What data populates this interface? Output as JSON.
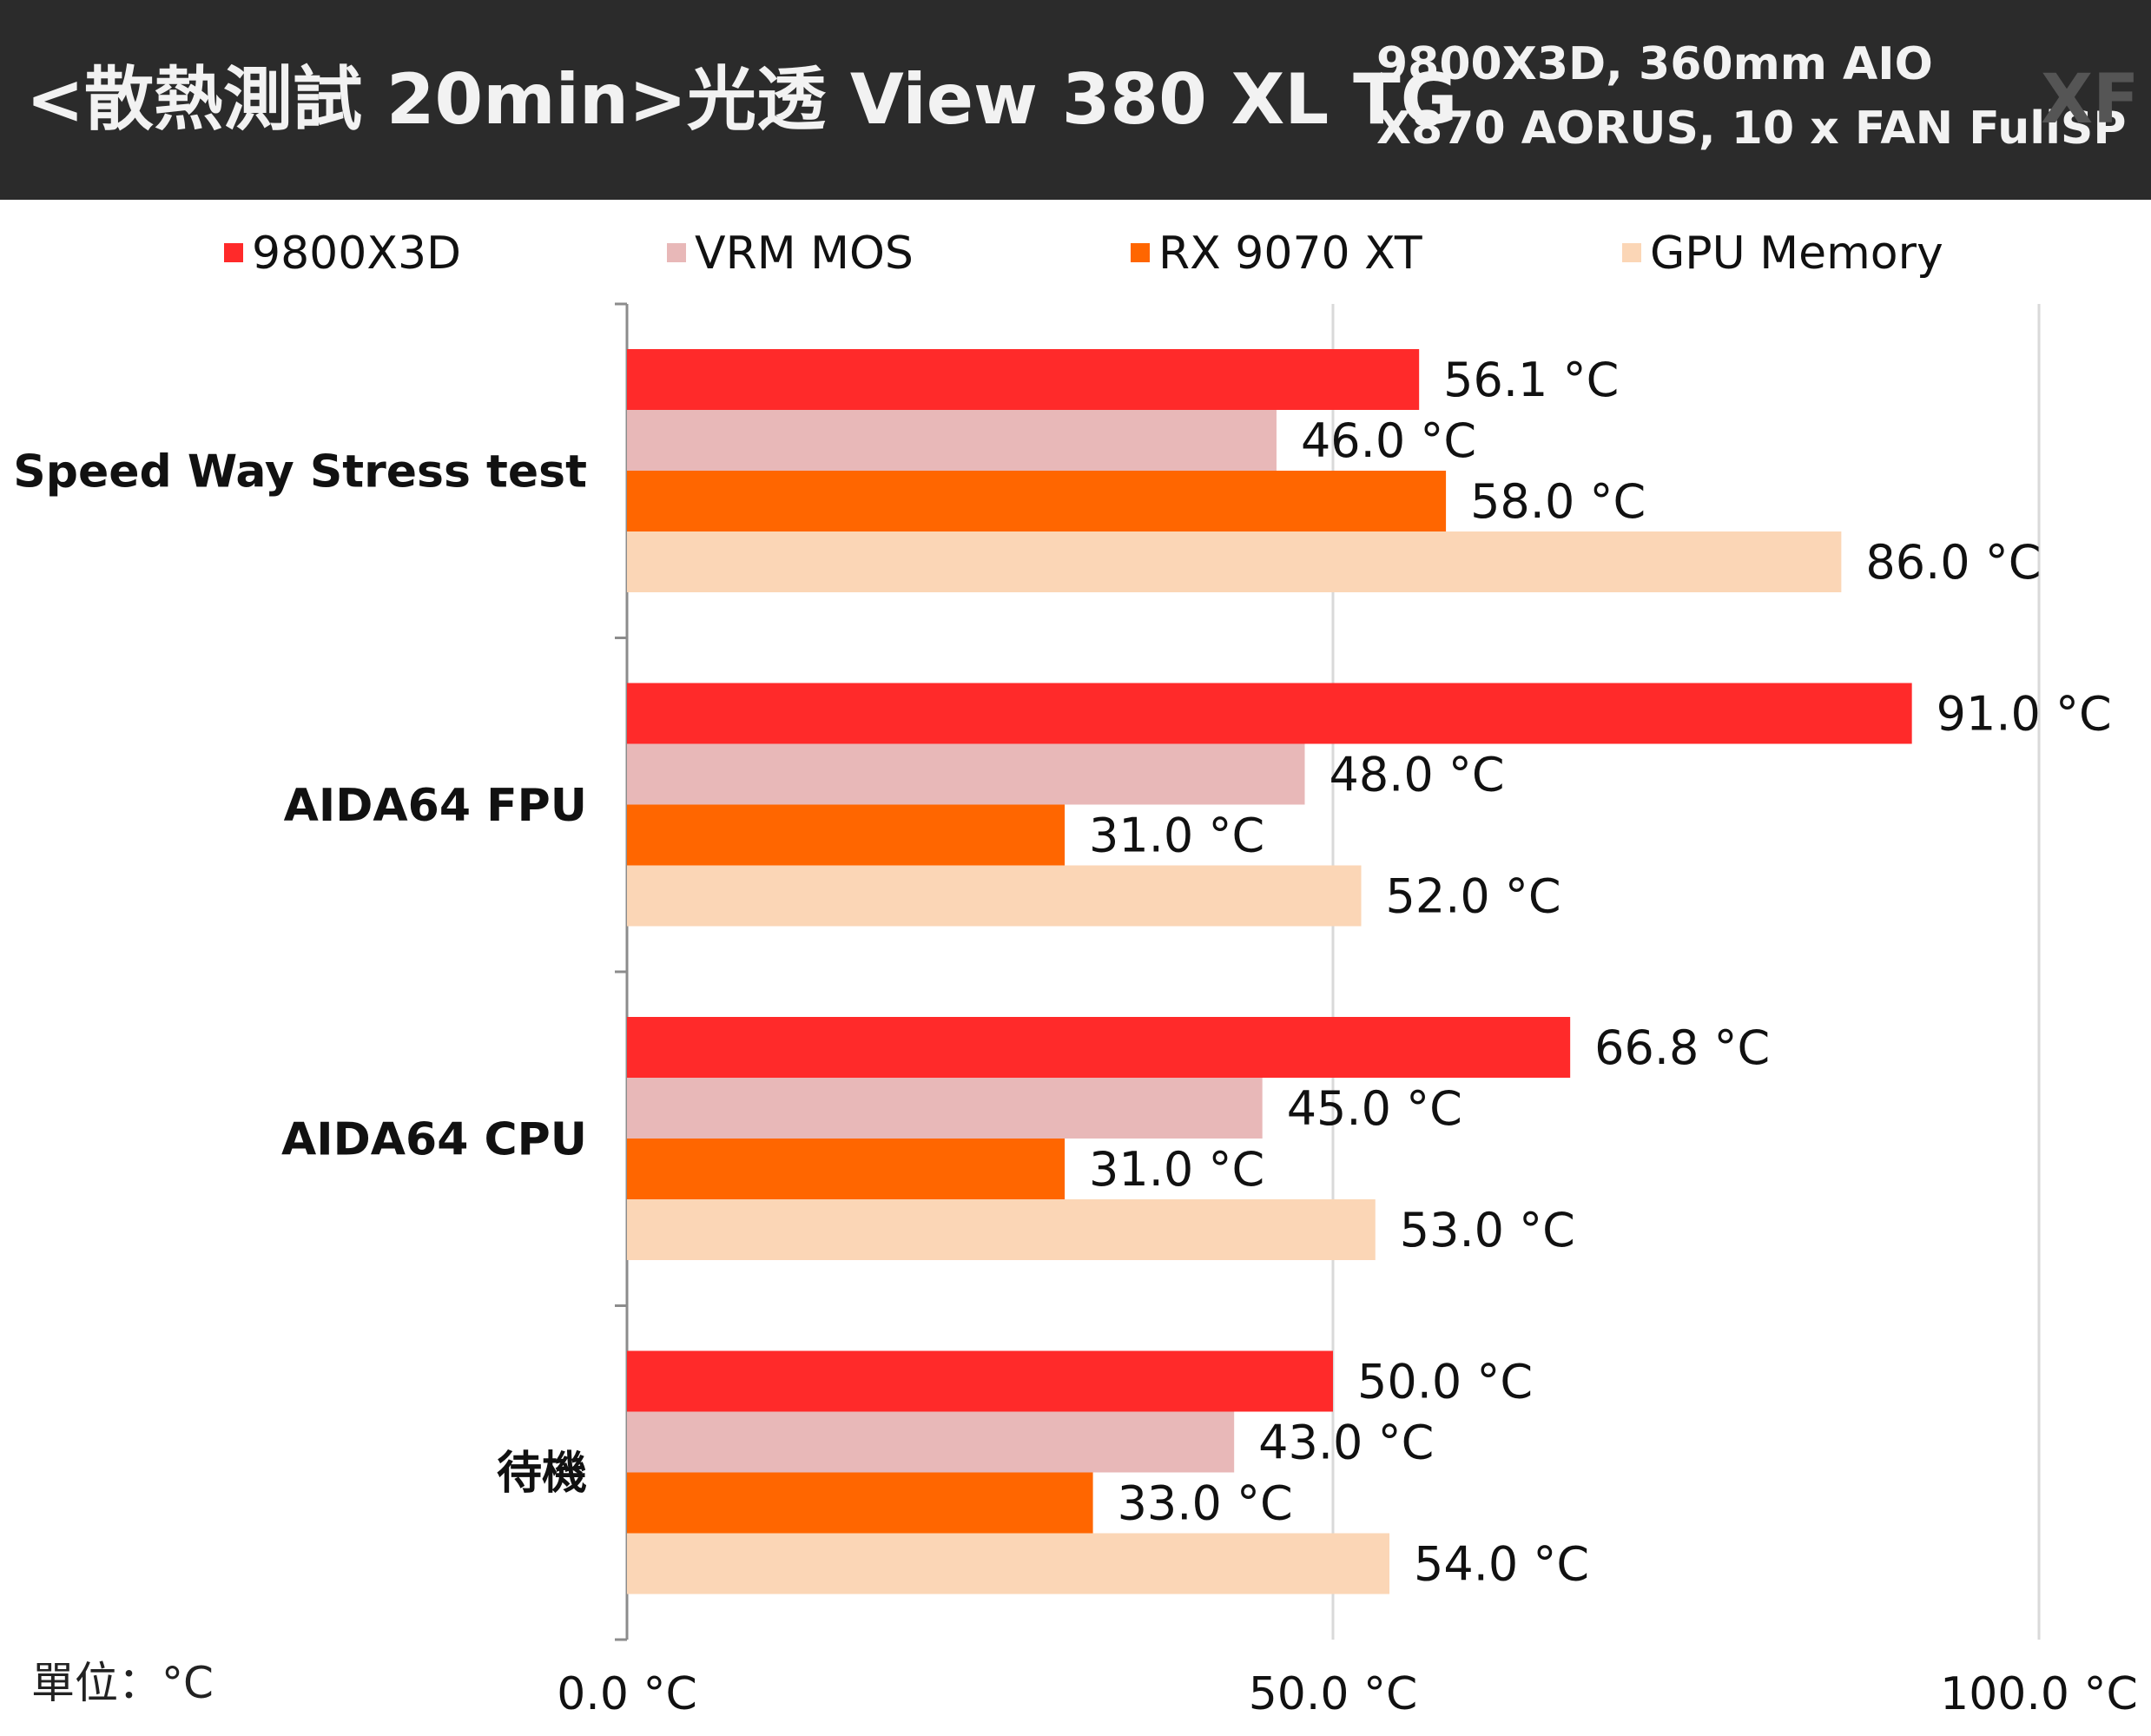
{
  "header": {
    "title": "<散熱測試 20min>光透 View 380 XL TG",
    "subtitle_line1": "9800X3D, 360mm AIO",
    "subtitle_line2": "X870 AORUS, 10 x FAN FullSP",
    "watermark": "XF"
  },
  "unit_label": "單位：°C",
  "colors": {
    "9800X3D": "#ff2a2a",
    "VRM MOS": "#e8b8b8",
    "RX 9070 XT": "#ff6600",
    "GPU Memory": "#fbd6b6"
  },
  "chart_data": {
    "type": "bar",
    "orientation": "horizontal",
    "categories": [
      "Speed Way Stress test",
      "AIDA64 FPU",
      "AIDA64 CPU",
      "待機"
    ],
    "series": [
      {
        "name": "9800X3D",
        "values": [
          56.1,
          91.0,
          66.8,
          50.0
        ],
        "labels": [
          "56.1 °C",
          "91.0 °C",
          "66.8 °C",
          "50.0 °C"
        ]
      },
      {
        "name": "VRM MOS",
        "values": [
          46.0,
          48.0,
          45.0,
          43.0
        ],
        "labels": [
          "46.0 °C",
          "48.0 °C",
          "45.0 °C",
          "43.0 °C"
        ]
      },
      {
        "name": "RX 9070 XT",
        "values": [
          58.0,
          31.0,
          31.0,
          33.0
        ],
        "labels": [
          "58.0 °C",
          "31.0 °C",
          "31.0 °C",
          "33.0 °C"
        ]
      },
      {
        "name": "GPU Memory",
        "values": [
          86.0,
          52.0,
          53.0,
          54.0
        ],
        "labels": [
          "86.0 °C",
          "52.0 °C",
          "53.0 °C",
          "54.0 °C"
        ]
      }
    ],
    "xlim": [
      0,
      100
    ],
    "xticks": [
      0,
      50,
      100
    ],
    "xtick_labels": [
      "0.0 °C",
      "50.0 °C",
      "100.0 °C"
    ],
    "grid": true,
    "legend_position": "top"
  }
}
